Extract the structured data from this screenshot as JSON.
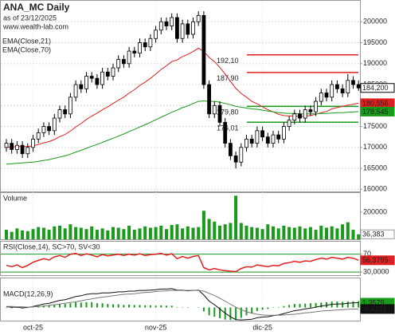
{
  "chart_data": [
    {
      "type": "candlestick",
      "title": "ANA_MC Daily",
      "subtitle": "as of 23/12/2025",
      "source": "www.wealth-lab.com",
      "categories": [
        null,
        null,
        null,
        null,
        null,
        "oct-25",
        null,
        null,
        null,
        null,
        null,
        null,
        null,
        null,
        null,
        null,
        null,
        null,
        null,
        null,
        null,
        null,
        null,
        null,
        null,
        null,
        null,
        null,
        "nov-25",
        null,
        null,
        null,
        null,
        null,
        null,
        null,
        null,
        null,
        null,
        null,
        null,
        null,
        null,
        null,
        null,
        null,
        null,
        null,
        "dic-25",
        null,
        null,
        null,
        null,
        null,
        null,
        null,
        null,
        null,
        null,
        null,
        null,
        null,
        null,
        null,
        null,
        null,
        null
      ],
      "open": [
        170000,
        171000,
        169500,
        170500,
        168500,
        170000,
        172000,
        173500,
        175000,
        174000,
        177000,
        179000,
        178000,
        182000,
        185000,
        184000,
        187000,
        186500,
        185000,
        188000,
        187000,
        189000,
        191000,
        190000,
        193000,
        192500,
        195000,
        194000,
        196000,
        198000,
        200000,
        199000,
        201000,
        196000,
        199500,
        197000,
        200000,
        201500,
        185000,
        178000,
        180000,
        176000,
        171000,
        168000,
        166500,
        170000,
        172000,
        171000,
        174000,
        172500,
        171000,
        173000,
        172000,
        175000,
        176500,
        178000,
        177000,
        179000,
        178500,
        181000,
        183000,
        182000,
        185000,
        184000,
        183000,
        186000,
        185000
      ],
      "high": [
        172000,
        172000,
        171500,
        171500,
        171000,
        173000,
        174500,
        176000,
        176000,
        178000,
        180000,
        180000,
        183000,
        186000,
        186000,
        188000,
        188000,
        187500,
        189000,
        189000,
        190000,
        192000,
        192000,
        194000,
        194000,
        196000,
        196000,
        197000,
        199000,
        201000,
        201000,
        202000,
        202000,
        200500,
        200500,
        201000,
        202500,
        202500,
        186000,
        181000,
        181000,
        177000,
        172000,
        169000,
        171000,
        173000,
        173000,
        175000,
        175000,
        173500,
        174000,
        174000,
        176000,
        177500,
        179000,
        179000,
        180000,
        180000,
        182000,
        184000,
        184000,
        186000,
        186000,
        185000,
        187500,
        187000,
        186000
      ],
      "low": [
        169000,
        168500,
        168500,
        167500,
        167500,
        169000,
        171000,
        172500,
        173000,
        173000,
        176000,
        177000,
        177000,
        181000,
        183000,
        183000,
        185500,
        184000,
        184000,
        186000,
        186000,
        188000,
        189000,
        189000,
        191500,
        191500,
        193000,
        193000,
        195000,
        197000,
        198000,
        198000,
        195000,
        195000,
        196000,
        196000,
        199000,
        184000,
        177000,
        177000,
        175000,
        170000,
        167000,
        165000,
        165500,
        169000,
        170000,
        170000,
        171500,
        170000,
        170000,
        171000,
        171000,
        174000,
        175500,
        176000,
        176000,
        177500,
        177500,
        180000,
        181000,
        181000,
        183000,
        182000,
        182000,
        184000,
        183500
      ],
      "close": [
        171000,
        169500,
        170500,
        168500,
        170000,
        172000,
        173500,
        175000,
        174000,
        177000,
        179000,
        178000,
        182000,
        185000,
        184000,
        187000,
        186500,
        185000,
        188000,
        187000,
        189000,
        191000,
        190000,
        193000,
        192500,
        195000,
        194000,
        196000,
        198000,
        200000,
        199000,
        201000,
        196000,
        199500,
        197000,
        200000,
        201500,
        185000,
        178000,
        180000,
        176000,
        171000,
        168000,
        166500,
        170000,
        172000,
        171000,
        174000,
        172500,
        171000,
        173000,
        172000,
        175000,
        176500,
        178000,
        177000,
        179000,
        178500,
        181000,
        183000,
        182000,
        185000,
        184000,
        183000,
        186000,
        185000,
        184200
      ],
      "last_label": "184,200",
      "series": [
        {
          "name": "EMA(Close,21)",
          "color": "#e02020",
          "last_label": "180,556",
          "values": [
            170000,
            170100,
            170200,
            170200,
            170200,
            170400,
            170700,
            171100,
            171400,
            171900,
            172600,
            173100,
            173900,
            174900,
            175700,
            176700,
            177500,
            178200,
            179000,
            179700,
            180500,
            181300,
            182000,
            183000,
            183800,
            184800,
            185600,
            186500,
            187500,
            188600,
            189500,
            190500,
            190900,
            191700,
            192200,
            192900,
            193700,
            192900,
            191500,
            190500,
            189100,
            187500,
            185800,
            184100,
            182900,
            182000,
            181000,
            180400,
            179700,
            179000,
            178500,
            177900,
            177600,
            177500,
            177500,
            177400,
            177500,
            177600,
            177900,
            178300,
            178600,
            179200,
            179500,
            179800,
            180100,
            180300,
            180556
          ]
        },
        {
          "name": "EMA(Close,70)",
          "color": "#1a9a1a",
          "last_label": "178,545",
          "values": [
            166000,
            166100,
            166200,
            166300,
            166400,
            166500,
            166700,
            166900,
            167100,
            167400,
            167700,
            168000,
            168400,
            168900,
            169300,
            169800,
            170300,
            170700,
            171200,
            171700,
            172200,
            172700,
            173200,
            173800,
            174300,
            174900,
            175400,
            176000,
            176600,
            177200,
            177800,
            178400,
            178900,
            179500,
            179900,
            180500,
            181000,
            181100,
            181000,
            181000,
            180800,
            180500,
            180200,
            179800,
            179600,
            179400,
            179200,
            179100,
            178900,
            178700,
            178500,
            178300,
            178200,
            178100,
            178100,
            178000,
            178000,
            178000,
            178000,
            178100,
            178100,
            178200,
            178300,
            178300,
            178400,
            178500,
            178545
          ]
        }
      ],
      "levels": [
        {
          "value": 192100,
          "label": "192,10",
          "color": "#e02020"
        },
        {
          "value": 187900,
          "label": "187,90",
          "color": "#e02020"
        },
        {
          "value": 179800,
          "label": "179,80",
          "color": "#1a9a1a"
        },
        {
          "value": 176010,
          "label": "176,01",
          "color": "#1a9a1a"
        }
      ],
      "ylim": [
        159500,
        205000
      ],
      "yticks": [
        160000,
        165000,
        170000,
        175000,
        180000,
        185000,
        190000,
        195000,
        200000
      ],
      "grid": true
    },
    {
      "type": "bar",
      "title": "Volume",
      "color": "#1a9a1a",
      "last_label": "36,383",
      "values": [
        70000,
        55000,
        80000,
        65000,
        60000,
        75000,
        90000,
        85000,
        70000,
        95000,
        100000,
        80000,
        110000,
        90000,
        85000,
        75000,
        95000,
        70000,
        80000,
        65000,
        90000,
        85000,
        75000,
        100000,
        70000,
        80000,
        95000,
        85000,
        90000,
        100000,
        75000,
        105000,
        110000,
        80000,
        95000,
        85000,
        90000,
        210000,
        150000,
        130000,
        100000,
        110000,
        120000,
        320000,
        120000,
        100000,
        90000,
        85000,
        75000,
        110000,
        95000,
        80000,
        100000,
        90000,
        85000,
        95000,
        80000,
        90000,
        70000,
        100000,
        85000,
        95000,
        80000,
        110000,
        125000,
        70000,
        36383
      ],
      "ylim": [
        0,
        340000
      ],
      "yticks": [
        200000
      ]
    },
    {
      "type": "line",
      "title": "RSI(Close,14), SC>70, SV<30",
      "color": "#e02020",
      "last_label": "56,3795",
      "values": [
        45,
        42,
        46,
        40,
        45,
        52,
        56,
        60,
        57,
        64,
        67,
        63,
        70,
        72,
        67,
        71,
        68,
        64,
        69,
        66,
        68,
        70,
        67,
        70,
        68,
        71,
        67,
        69,
        70,
        72,
        68,
        71,
        60,
        65,
        61,
        65,
        67,
        40,
        35,
        38,
        35,
        33,
        32,
        31,
        38,
        42,
        41,
        46,
        44,
        42,
        45,
        44,
        49,
        51,
        54,
        52,
        55,
        54,
        58,
        61,
        59,
        63,
        61,
        59,
        63,
        61,
        56.3795
      ],
      "ylim": [
        23,
        98
      ],
      "yticks": [
        70,
        {
          "value": 30,
          "label": "30,0000"
        }
      ],
      "grid": true,
      "grid_color": "#1a9a1a"
    },
    {
      "type": "macd",
      "title": "MACD(12,26,9)",
      "series": [
        {
          "color": "#111111",
          "tag_color": "#1a9a1a",
          "last_label": "1,3579",
          "values": [
            0.2,
            0.1,
            0.1,
            -0.1,
            0,
            0.3,
            0.6,
            1.0,
            1.2,
            1.6,
            2.0,
            2.2,
            2.6,
            3.1,
            3.3,
            3.7,
            3.9,
            3.9,
            4.1,
            4.1,
            4.2,
            4.4,
            4.4,
            4.6,
            4.6,
            4.8,
            4.8,
            4.9,
            5.0,
            5.2,
            5.2,
            5.3,
            4.9,
            4.9,
            4.7,
            4.8,
            4.9,
            3.5,
            1.8,
            0.8,
            -0.4,
            -1.6,
            -2.6,
            -3.4,
            -3.5,
            -3.4,
            -3.3,
            -2.9,
            -2.7,
            -2.6,
            -2.3,
            -2.1,
            -1.7,
            -1.3,
            -0.9,
            -0.7,
            -0.4,
            -0.2,
            0.1,
            0.4,
            0.6,
            0.9,
            1.0,
            1.0,
            1.2,
            1.3,
            1.3579
          ]
        },
        {
          "color": "#777777",
          "tag_color": "#111111",
          "last_label": "-0,4281",
          "values": [
            0.3,
            0.3,
            0.2,
            0.2,
            0.1,
            0.2,
            0.3,
            0.4,
            0.6,
            0.8,
            1.0,
            1.2,
            1.4,
            1.6,
            1.9,
            2.2,
            2.4,
            2.7,
            2.9,
            3.1,
            3.3,
            3.5,
            3.7,
            3.8,
            3.9,
            4.1,
            4.2,
            4.3,
            4.5,
            4.6,
            4.7,
            4.8,
            4.8,
            4.8,
            4.8,
            4.8,
            4.8,
            4.6,
            4.0,
            3.4,
            2.6,
            1.8,
            0.9,
            0.1,
            -0.6,
            -1.2,
            -1.6,
            -1.9,
            -2.1,
            -2.2,
            -2.2,
            -2.2,
            -2.1,
            -2.0,
            -1.9,
            -1.7,
            -1.5,
            -1.4,
            -1.2,
            -1.0,
            -0.9,
            -0.8,
            -0.7,
            -0.6,
            -0.5,
            -0.45,
            -0.4281
          ]
        }
      ],
      "histogram": {
        "color": "#1a9a1a",
        "values": [
          -0.1,
          -0.2,
          -0.1,
          -0.3,
          -0.1,
          0.1,
          0.3,
          0.6,
          0.6,
          0.8,
          1.0,
          1.0,
          1.2,
          1.5,
          1.4,
          1.5,
          1.5,
          1.2,
          1.2,
          1.0,
          0.9,
          0.9,
          0.7,
          0.8,
          0.7,
          0.7,
          0.6,
          0.6,
          0.5,
          0.6,
          0.5,
          0.5,
          0.1,
          0.1,
          -0.1,
          0,
          0.1,
          -1.1,
          -2.2,
          -2.6,
          -3.0,
          -3.4,
          -3.5,
          -3.5,
          -2.9,
          -2.2,
          -1.7,
          -1.0,
          -0.6,
          -0.4,
          -0.1,
          0.1,
          0.4,
          0.7,
          1.0,
          1.0,
          1.1,
          1.2,
          1.3,
          1.4,
          1.5,
          1.7,
          1.7,
          1.6,
          1.7,
          1.75,
          1.786
        ]
      },
      "ylim": [
        -3.7,
        8.2
      ]
    }
  ]
}
